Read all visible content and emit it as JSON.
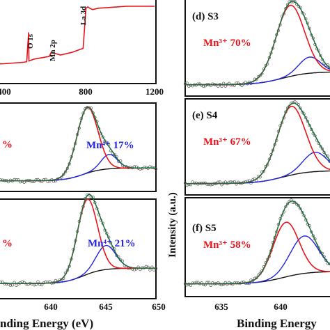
{
  "colors": {
    "red": "#e8141b",
    "blue": "#2323e0",
    "black": "#111111",
    "fit": "#1f6e3c",
    "data": "#555555"
  },
  "chart_data": [
    {
      "id": "survey",
      "type": "line",
      "x_ticks": [
        "400",
        "800",
        "1200"
      ],
      "annotations": [
        "O 1s",
        "Mn 2p",
        "La 3d"
      ],
      "series": [
        {
          "x": [
            200,
            300,
            400,
            500,
            520,
            530,
            532,
            540,
            560,
            600,
            640,
            650,
            700,
            760,
            800,
            820,
            835,
            845,
            855,
            870,
            900,
            950,
            1000,
            1050,
            1100,
            1150,
            1200
          ],
          "y": [
            10,
            12,
            13,
            15,
            16,
            60,
            17,
            18,
            20,
            22,
            24,
            30,
            26,
            30,
            34,
            36,
            96,
            98,
            96,
            94,
            96,
            97,
            98,
            99,
            99,
            99,
            99
          ]
        }
      ]
    },
    {
      "id": "a-or-b-1",
      "type": "line",
      "labels": {
        "mn3": "%",
        "mn4": "Mn⁴⁺ 17%"
      },
      "x_ticks": [],
      "fit": {
        "mn3_center": 641.5,
        "mn3_height": 82,
        "mn3_width": 1.3,
        "mn4_center": 644.2,
        "mn4_height": 18,
        "mn4_width": 1.0
      }
    },
    {
      "id": "a-or-b-2",
      "type": "line",
      "labels": {
        "mn3": "%",
        "mn4": "Mn⁴⁺ 21%"
      },
      "x_ticks": [
        "640",
        "645",
        "650"
      ],
      "x_label": "nding Energy (eV)",
      "fit": {
        "mn3_center": 641.5,
        "mn3_height": 78,
        "mn3_width": 1.25,
        "mn4_center": 643.8,
        "mn4_height": 25,
        "mn4_width": 1.2
      }
    },
    {
      "id": "S3",
      "type": "line",
      "panel_label": "(d) S3",
      "labels": {
        "mn3": "Mn³⁺ 70%"
      },
      "x_ticks": [],
      "fit": {
        "mn3_center": 641.7,
        "mn3_height": 88,
        "mn3_width": 1.3,
        "mn4_center": 643.5,
        "mn4_height": 20,
        "mn4_width": 1.0
      }
    },
    {
      "id": "S4",
      "type": "line",
      "panel_label": "(e) S4",
      "labels": {
        "mn3": "Mn³⁺ 67%"
      },
      "x_ticks": [],
      "fit": {
        "mn3_center": 641.8,
        "mn3_height": 85,
        "mn3_width": 1.3,
        "mn4_center": 644.0,
        "mn4_height": 24,
        "mn4_width": 1.1
      }
    },
    {
      "id": "S5",
      "type": "line",
      "panel_label": "(f) S5",
      "labels": {
        "mn3": "Mn³⁺ 58%"
      },
      "x_ticks": [
        "635",
        "640"
      ],
      "x_label": "Binding Energy",
      "fit": {
        "mn3_center": 641.3,
        "mn3_height": 70,
        "mn3_width": 1.2,
        "mn4_center": 643.0,
        "mn4_height": 48,
        "mn4_width": 1.3
      }
    }
  ],
  "y_label": "Intensity (a.u.)"
}
